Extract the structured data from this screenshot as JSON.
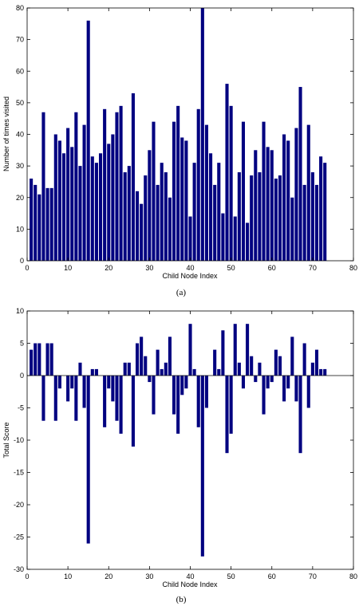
{
  "chart_data": [
    {
      "type": "bar",
      "panel_label": "(a)",
      "xlabel": "Child Node Index",
      "ylabel": "Number of times visited",
      "xlim": [
        0,
        80
      ],
      "ylim": [
        0,
        80
      ],
      "xticks": [
        0,
        10,
        20,
        30,
        40,
        50,
        60,
        70,
        80
      ],
      "yticks": [
        0,
        10,
        20,
        30,
        40,
        50,
        60,
        70,
        80
      ],
      "x": [
        1,
        2,
        3,
        4,
        5,
        6,
        7,
        8,
        9,
        10,
        11,
        12,
        13,
        14,
        15,
        16,
        17,
        18,
        19,
        20,
        21,
        22,
        23,
        24,
        25,
        26,
        27,
        28,
        29,
        30,
        31,
        32,
        33,
        34,
        35,
        36,
        37,
        38,
        39,
        40,
        41,
        42,
        43,
        44,
        45,
        46,
        47,
        48,
        49,
        50,
        51,
        52,
        53,
        54,
        55,
        56,
        57,
        58,
        59,
        60,
        61,
        62,
        63,
        64,
        65,
        66,
        67,
        68,
        69,
        70,
        71,
        72,
        73
      ],
      "values": [
        26,
        24,
        21,
        47,
        23,
        23,
        40,
        38,
        34,
        42,
        36,
        47,
        30,
        43,
        76,
        33,
        31,
        34,
        48,
        37,
        40,
        47,
        49,
        28,
        30,
        53,
        22,
        18,
        27,
        35,
        44,
        24,
        31,
        28,
        20,
        44,
        49,
        39,
        38,
        14,
        31,
        48,
        80,
        43,
        34,
        24,
        31,
        15,
        56,
        49,
        14,
        28,
        44,
        12,
        27,
        35,
        28,
        44,
        36,
        35,
        26,
        27,
        40,
        38,
        20,
        42,
        55,
        24,
        43,
        28,
        24,
        33,
        31
      ],
      "color": "#000080",
      "grid": false
    },
    {
      "type": "bar",
      "panel_label": "(b)",
      "xlabel": "Child Node Index",
      "ylabel": "Total Score",
      "xlim": [
        0,
        80
      ],
      "ylim": [
        -30,
        10
      ],
      "xticks": [
        0,
        10,
        20,
        30,
        40,
        50,
        60,
        70,
        80
      ],
      "yticks": [
        -30,
        -25,
        -20,
        -15,
        -10,
        -5,
        0,
        5,
        10
      ],
      "x": [
        1,
        2,
        3,
        4,
        5,
        6,
        7,
        8,
        9,
        10,
        11,
        12,
        13,
        14,
        15,
        16,
        17,
        18,
        19,
        20,
        21,
        22,
        23,
        24,
        25,
        26,
        27,
        28,
        29,
        30,
        31,
        32,
        33,
        34,
        35,
        36,
        37,
        38,
        39,
        40,
        41,
        42,
        43,
        44,
        45,
        46,
        47,
        48,
        49,
        50,
        51,
        52,
        53,
        54,
        55,
        56,
        57,
        58,
        59,
        60,
        61,
        62,
        63,
        64,
        65,
        66,
        67,
        68,
        69,
        70,
        71,
        72,
        73
      ],
      "values": [
        4,
        5,
        5,
        -7,
        5,
        5,
        -7,
        -2,
        0,
        -4,
        -2,
        -7,
        2,
        -5,
        -26,
        1,
        1,
        0,
        -8,
        -2,
        -4,
        -7,
        -9,
        2,
        2,
        -11,
        5,
        6,
        3,
        -1,
        -6,
        4,
        1,
        2,
        6,
        -6,
        -9,
        -3,
        -2,
        8,
        1,
        -8,
        -28,
        -5,
        0,
        4,
        1,
        7,
        -12,
        -9,
        8,
        2,
        -2,
        8,
        3,
        -1,
        2,
        -6,
        -2,
        -1,
        4,
        3,
        -4,
        -2,
        6,
        -4,
        -12,
        5,
        -5,
        2,
        4,
        1,
        1
      ],
      "color": "#000080",
      "grid": false
    }
  ]
}
